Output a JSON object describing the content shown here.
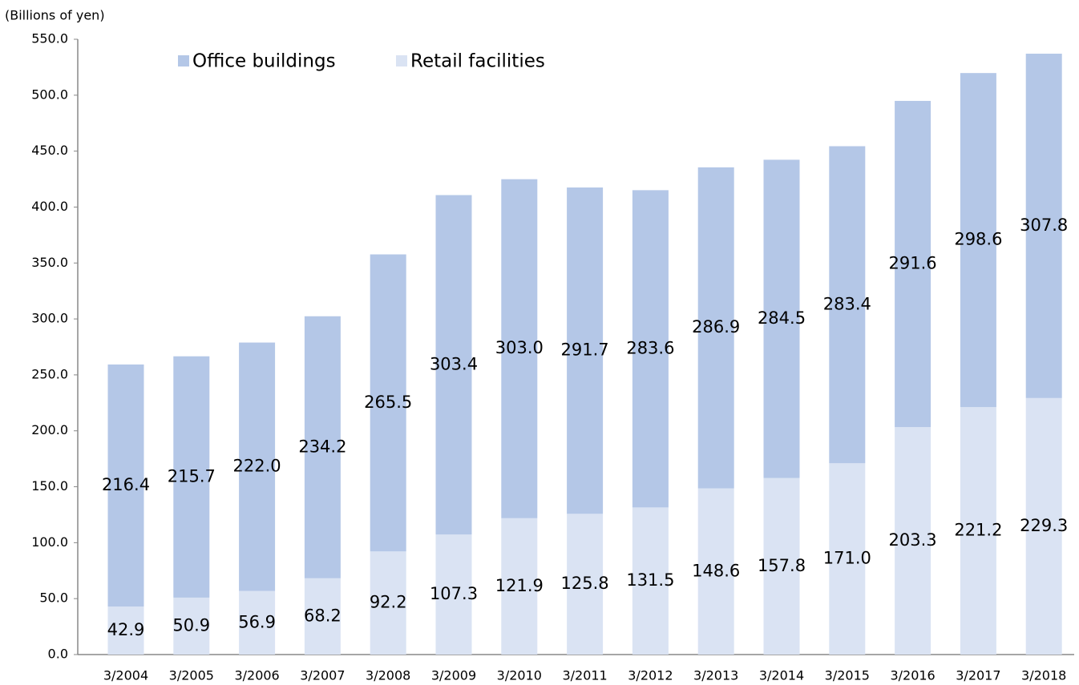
{
  "chart_data": {
    "type": "stacked_bar",
    "y_axis_label": "(Billions of yen)",
    "categories": [
      "3/2004",
      "3/2005",
      "3/2006",
      "3/2007",
      "3/2008",
      "3/2009",
      "3/2010",
      "3/2011",
      "3/2012",
      "3/2013",
      "3/2014",
      "3/2015",
      "3/2016",
      "3/2017",
      "3/2018"
    ],
    "series": [
      {
        "name": "Retail facilities",
        "color": "#dae3f3",
        "values": [
          42.9,
          50.9,
          56.9,
          68.2,
          92.2,
          107.3,
          121.9,
          125.8,
          131.5,
          148.6,
          157.8,
          171.0,
          203.3,
          221.2,
          229.3
        ],
        "value_labels": [
          "42.9",
          "50.9",
          "56.9",
          "68.2",
          "92.2",
          "107.3",
          "121.9",
          "125.8",
          "131.5",
          "148.6",
          "157.8",
          "171.0",
          "203.3",
          "221.2",
          "229.3"
        ]
      },
      {
        "name": "Office buildings",
        "color": "#b4c7e7",
        "values": [
          216.4,
          215.7,
          222.0,
          234.2,
          265.5,
          303.4,
          303.0,
          291.7,
          283.6,
          286.9,
          284.5,
          283.4,
          291.6,
          298.6,
          307.8
        ],
        "value_labels": [
          "216.4",
          "215.7",
          "222.0",
          "234.2",
          "265.5",
          "303.4",
          "303.0",
          "291.7",
          "283.6",
          "286.9",
          "284.5",
          "283.4",
          "291.6",
          "298.6",
          "307.8"
        ]
      }
    ],
    "legend_order": [
      1,
      0
    ],
    "ylim": [
      0,
      550
    ],
    "yticks": [
      {
        "value": 0,
        "label": "0.0"
      },
      {
        "value": 50,
        "label": "50.0"
      },
      {
        "value": 100,
        "label": "100.0"
      },
      {
        "value": 150,
        "label": "150.0"
      },
      {
        "value": 200,
        "label": "200.0"
      },
      {
        "value": 250,
        "label": "250.0"
      },
      {
        "value": 300,
        "label": "300.0"
      },
      {
        "value": 350,
        "label": "350.0"
      },
      {
        "value": 400,
        "label": "400.0"
      },
      {
        "value": 450,
        "label": "450.0"
      },
      {
        "value": 500,
        "label": "500.0"
      },
      {
        "value": 550,
        "label": "550.0"
      }
    ],
    "grid": false
  }
}
